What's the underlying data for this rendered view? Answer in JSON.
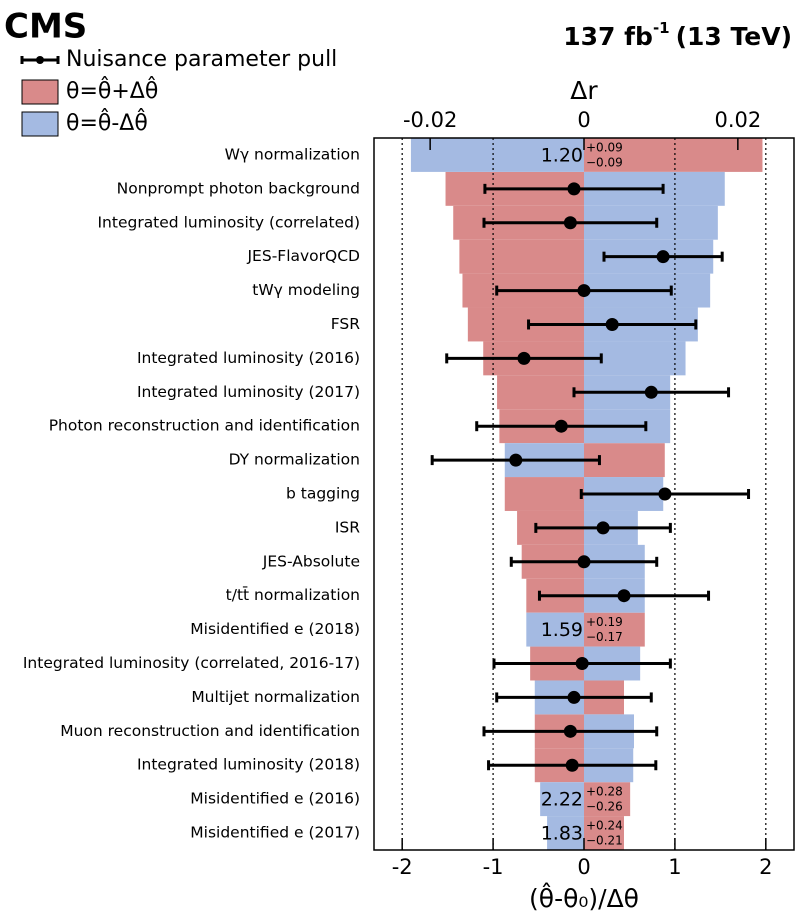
{
  "chart_data": {
    "type": "impact",
    "experiment": "CMS",
    "lumi": "137 fb",
    "lumi_sup": "-1",
    "energy": "(13 TeV)",
    "xlabel": "(θ̂-θ₀)/Δθ",
    "x2label": "Δr",
    "categories": [
      "Wγ normalization",
      "Nonprompt photon background",
      "Integrated luminosity (correlated)",
      "JES-FlavorQCD",
      "tWγ modeling",
      "FSR",
      "Integrated luminosity (2016)",
      "Integrated luminosity (2017)",
      "Photon reconstruction and identification",
      "DY normalization",
      "b tagging",
      "ISR",
      "JES-Absolute",
      "t/tt̄ normalization",
      "Misidentified e (2018)",
      "Integrated luminosity (correlated, 2016-17)",
      "Multijet normalization",
      "Muon reconstruction and identification",
      "Integrated luminosity (2018)",
      "Misidentified e (2016)",
      "Misidentified e (2017)"
    ],
    "series": [
      {
        "name": "θ=θ̂+Δθ̂",
        "color": "#d98a8a",
        "axis": "x2",
        "values": [
          0.0232,
          -0.018,
          -0.017,
          -0.0162,
          -0.0158,
          -0.0151,
          -0.0131,
          -0.0113,
          -0.011,
          0.0105,
          -0.0103,
          -0.0087,
          -0.0081,
          -0.0075,
          0.0079,
          -0.007,
          0.0052,
          -0.0064,
          -0.0064,
          0.006,
          0.0052
        ]
      },
      {
        "name": "θ=θ̂-Δθ̂",
        "color": "#a4bae2",
        "axis": "x2",
        "values": [
          -0.0225,
          0.0183,
          0.0174,
          0.0168,
          0.0164,
          0.0148,
          0.0132,
          0.0112,
          0.0112,
          -0.0103,
          0.0103,
          0.007,
          0.0079,
          0.0079,
          -0.0075,
          0.0073,
          -0.0064,
          0.0065,
          0.0064,
          -0.0057,
          -0.0048
        ]
      },
      {
        "name": "Nuisance parameter pull",
        "color": "#000000",
        "values": [
          null,
          -0.11,
          -0.15,
          0.87,
          0,
          0.31,
          -0.66,
          0.74,
          -0.25,
          -0.75,
          0.89,
          0.21,
          0,
          0.44,
          null,
          -0.02,
          -0.11,
          -0.15,
          -0.13,
          null,
          null
        ],
        "errors": [
          null,
          0.98,
          0.95,
          0.65,
          0.96,
          0.92,
          0.85,
          0.85,
          0.93,
          0.92,
          0.92,
          0.74,
          0.8,
          0.93,
          null,
          0.97,
          0.85,
          0.95,
          0.92,
          null,
          null
        ]
      }
    ],
    "fit_labels": [
      {
        "value": "1.20",
        "up": "+0.09",
        "down": "−0.09"
      },
      null,
      null,
      null,
      null,
      null,
      null,
      null,
      null,
      null,
      null,
      null,
      null,
      null,
      {
        "value": "1.59",
        "up": "+0.19",
        "down": "−0.17"
      },
      null,
      null,
      null,
      null,
      {
        "value": "2.22",
        "up": "+0.28",
        "down": "−0.26"
      },
      {
        "value": "1.83",
        "up": "+0.24",
        "down": "−0.21"
      }
    ],
    "xlim": [
      -2.31,
      2.31
    ],
    "xticks": [
      -2,
      -1,
      0,
      1,
      2
    ],
    "x2lim": [
      -0.0273,
      0.0273
    ],
    "x2ticks": [
      -0.02,
      0,
      0.02
    ],
    "dotted_lines": [
      -2,
      -1,
      1,
      2
    ]
  }
}
